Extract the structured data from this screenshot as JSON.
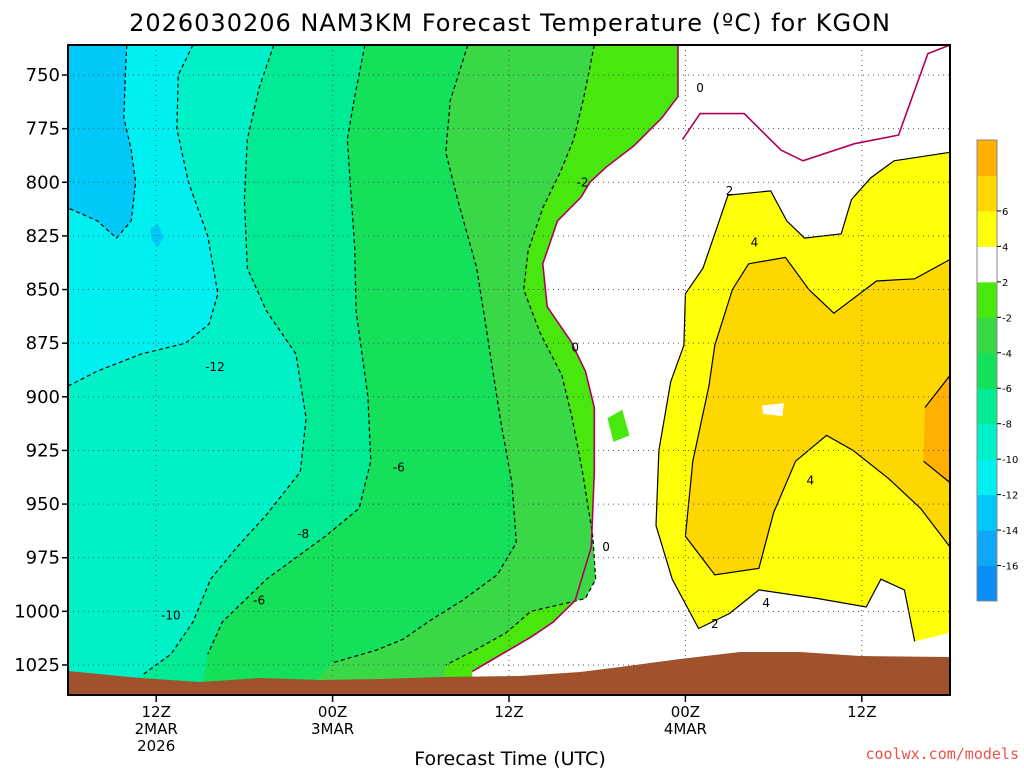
{
  "chart_data": {
    "type": "heatmap",
    "title": "2026030206 NAM3KM Forecast Temperature (ºC) for KGON",
    "xlabel": "Forecast Time (UTC)",
    "ylabel": "",
    "y_scale": "pressure (inverted)",
    "y_ticks": [
      "750",
      "775",
      "800",
      "825",
      "850",
      "875",
      "900",
      "925",
      "950",
      "975",
      "1000",
      "1025"
    ],
    "y_tick_values": [
      750,
      775,
      800,
      825,
      850,
      875,
      900,
      925,
      950,
      975,
      1000,
      1025
    ],
    "ylim": [
      1039,
      736
    ],
    "x_ticks": [
      {
        "line1": "12Z",
        "line2": "2MAR",
        "line3": "2026",
        "hours": 6
      },
      {
        "line1": "00Z",
        "line2": "3MAR",
        "line3": "",
        "hours": 18
      },
      {
        "line1": "12Z",
        "line2": "",
        "line3": "",
        "hours": 30
      },
      {
        "line1": "00Z",
        "line2": "4MAR",
        "line3": "",
        "hours": 42
      },
      {
        "line1": "12Z",
        "line2": "",
        "line3": "",
        "hours": 54
      }
    ],
    "xlim": [
      0,
      60
    ],
    "grid": true,
    "grid_style": "dotted",
    "legend": "colorbar right",
    "colorbar": {
      "levels": [
        -18,
        -16,
        -14,
        -12,
        -10,
        -8,
        -6,
        -4,
        -2,
        2,
        4,
        6,
        8
      ],
      "tick_labels": [
        "-16",
        "-14",
        "-12",
        "-10",
        "-8",
        "-6",
        "-4",
        "-2",
        "2",
        "4",
        "6"
      ],
      "colors": [
        "#0b8ef5",
        "#12a7f6",
        "#00c8f8",
        "#00f0f2",
        "#00f0c8",
        "#00eb94",
        "#14e05a",
        "#3ad846",
        "#48e80f",
        "#ffffff",
        "#ffff08",
        "#ffd700",
        "#ffb000"
      ]
    },
    "contour_labels": [
      {
        "text": "0",
        "hours": 43,
        "hPa": 756
      },
      {
        "text": "-2",
        "hours": 35,
        "hPa": 800
      },
      {
        "text": "2",
        "hours": 45,
        "hPa": 804
      },
      {
        "text": "4",
        "hours": 46.7,
        "hPa": 828
      },
      {
        "text": "0",
        "hours": 34.5,
        "hPa": 877
      },
      {
        "text": "-12",
        "hours": 10,
        "hPa": 886
      },
      {
        "text": "-6",
        "hours": 22.5,
        "hPa": 933
      },
      {
        "text": "-8",
        "hours": 16,
        "hPa": 964
      },
      {
        "text": "0",
        "hours": 36.6,
        "hPa": 970
      },
      {
        "text": "-6",
        "hours": 13,
        "hPa": 995
      },
      {
        "text": "-10",
        "hours": 7,
        "hPa": 1002
      },
      {
        "text": "4",
        "hours": 50.5,
        "hPa": 939
      },
      {
        "text": "4",
        "hours": 47.5,
        "hPa": 996
      },
      {
        "text": "2",
        "hours": 44,
        "hPa": 1006
      }
    ],
    "series": [
      {
        "values_at_750hPa_by_hour": [
          [
            0,
            -17
          ],
          [
            6,
            -14
          ],
          [
            12,
            -12
          ],
          [
            18,
            -9
          ],
          [
            24,
            -6
          ],
          [
            30,
            -4
          ],
          [
            36,
            -3
          ],
          [
            42,
            -1
          ],
          [
            48,
            0
          ],
          [
            54,
            1
          ],
          [
            60,
            2
          ]
        ]
      },
      {
        "values_at_850hPa_by_hour": [
          [
            0,
            -14
          ],
          [
            6,
            -12
          ],
          [
            12,
            -11
          ],
          [
            18,
            -8
          ],
          [
            24,
            -6
          ],
          [
            30,
            -4
          ],
          [
            36,
            -1
          ],
          [
            42,
            3
          ],
          [
            48,
            5
          ],
          [
            54,
            4
          ],
          [
            60,
            6
          ]
        ]
      },
      {
        "values_at_950hPa_by_hour": [
          [
            0,
            -9
          ],
          [
            6,
            -11
          ],
          [
            12,
            -9
          ],
          [
            18,
            -8
          ],
          [
            24,
            -5
          ],
          [
            30,
            -3
          ],
          [
            36,
            0
          ],
          [
            42,
            4
          ],
          [
            48,
            5
          ],
          [
            54,
            3
          ],
          [
            60,
            5
          ]
        ]
      }
    ]
  },
  "credit": "coolwx.com/models"
}
